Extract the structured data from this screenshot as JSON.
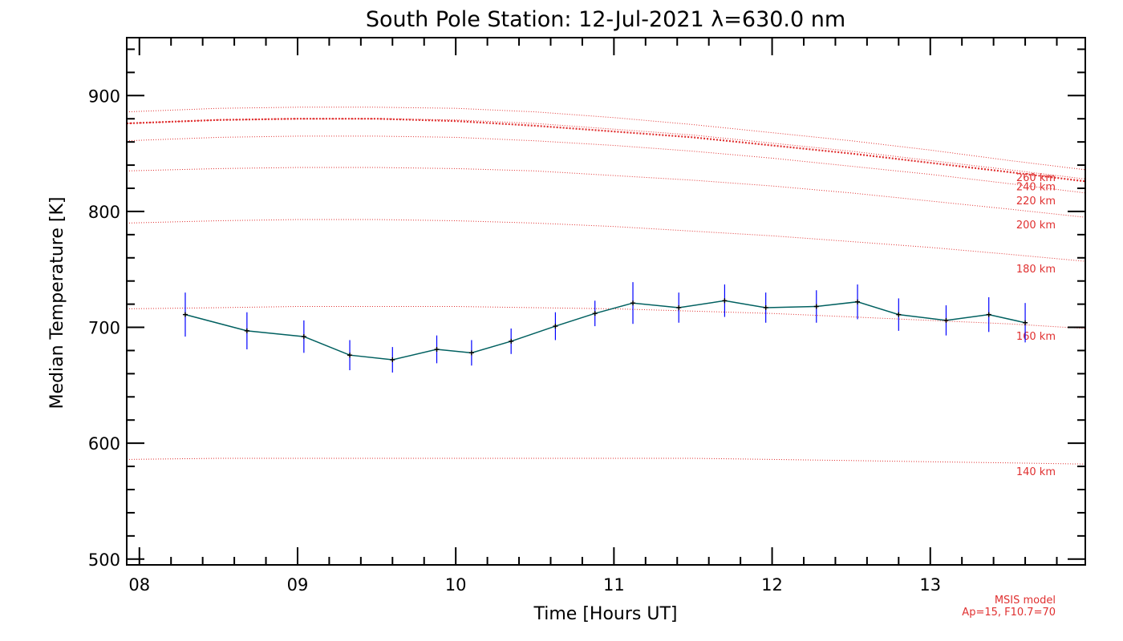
{
  "chart_data": {
    "type": "line",
    "title": "South Pole Station: 12-Jul-2021 λ=630.0 nm",
    "xlabel": "Time [Hours UT]",
    "ylabel": "Median Temperature [K]",
    "xlim": [
      7.92,
      13.98
    ],
    "ylim": [
      495,
      950
    ],
    "xticks": [
      8,
      9,
      10,
      11,
      12,
      13
    ],
    "xtick_labels": [
      "08",
      "09",
      "10",
      "11",
      "12",
      "13"
    ],
    "yticks": [
      500,
      600,
      700,
      800,
      900
    ],
    "ytick_labels": [
      "500",
      "600",
      "700",
      "800",
      "900"
    ],
    "measurement_series": {
      "name": "Median Temperature",
      "color_line": "#006060",
      "color_errbar": "#0000ff",
      "x": [
        8.29,
        8.68,
        9.04,
        9.33,
        9.6,
        9.88,
        10.1,
        10.35,
        10.63,
        10.88,
        11.12,
        11.41,
        11.7,
        11.96,
        12.28,
        12.54,
        12.8,
        13.1,
        13.37,
        13.6
      ],
      "y": [
        711,
        697,
        692,
        676,
        672,
        681,
        678,
        688,
        701,
        712,
        721,
        717,
        723,
        717,
        718,
        722,
        711,
        706,
        711,
        704
      ],
      "err": [
        19,
        16,
        14,
        13,
        11,
        12,
        11,
        11,
        12,
        11,
        18,
        13,
        14,
        13,
        14,
        15,
        14,
        13,
        15,
        17
      ]
    },
    "model_curves": {
      "color": "#e03030",
      "x": [
        7.92,
        8.5,
        9.0,
        9.5,
        10.0,
        10.5,
        11.0,
        11.5,
        12.0,
        12.5,
        13.0,
        13.5,
        13.98
      ],
      "series": [
        {
          "name": "140 km",
          "label": "140 km",
          "y": [
            586,
            587,
            587,
            587,
            587,
            587,
            587,
            587,
            586,
            585,
            584,
            583,
            582
          ]
        },
        {
          "name": "160 km",
          "label": "160 km",
          "y": [
            716,
            717,
            718,
            718,
            718,
            717,
            716,
            714,
            712,
            709,
            706,
            703,
            699
          ]
        },
        {
          "name": "180 km",
          "label": "180 km",
          "y": [
            790,
            792,
            793,
            793,
            792,
            790,
            787,
            783,
            779,
            774,
            769,
            763,
            757
          ]
        },
        {
          "name": "200 km",
          "label": "200 km",
          "y": [
            835,
            837,
            838,
            838,
            837,
            835,
            831,
            827,
            822,
            816,
            809,
            802,
            795
          ]
        },
        {
          "name": "220 km",
          "label": "220 km",
          "y": [
            861,
            864,
            865,
            865,
            864,
            861,
            857,
            852,
            846,
            839,
            832,
            824,
            816
          ]
        },
        {
          "name": "240 km",
          "label": "240 km",
          "y": [
            876,
            879,
            880,
            880,
            879,
            876,
            871,
            866,
            859,
            852,
            844,
            836,
            828
          ]
        },
        {
          "name": "260 km",
          "label": "260 km",
          "y": [
            886,
            889,
            890,
            890,
            889,
            886,
            881,
            875,
            868,
            861,
            853,
            844,
            836
          ]
        }
      ],
      "highlight": {
        "name": "thick model curve",
        "y": [
          876,
          879,
          880,
          880,
          878,
          874,
          869,
          864,
          857,
          850,
          842,
          834,
          826
        ]
      }
    },
    "annotations": [
      "MSIS model",
      "Ap=15, F10.7=70"
    ]
  },
  "colors": {
    "axis": "#000000",
    "model": "#e03030",
    "data_line": "#006060",
    "errbar": "#0000ff"
  }
}
